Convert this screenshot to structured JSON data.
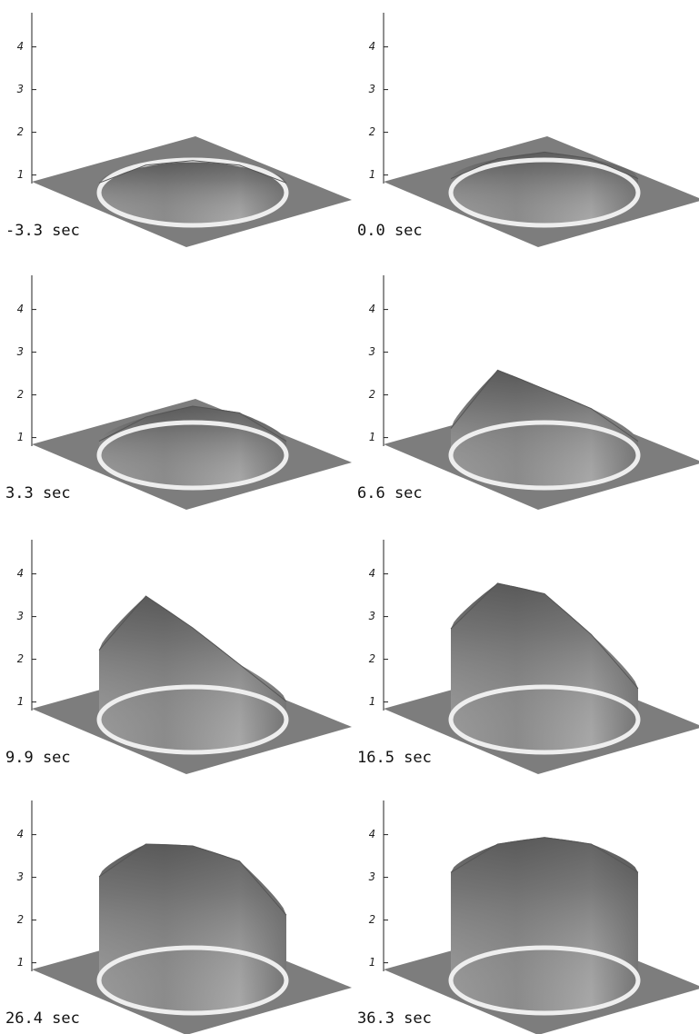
{
  "chart_data": [
    {
      "type": "surface",
      "label": "-3.3 sec",
      "zlim": [
        0.8,
        4.8
      ],
      "zticks": [
        1,
        2,
        3,
        4
      ],
      "heights": [
        1.1,
        1.15,
        1.2,
        1.15,
        1.1
      ]
    },
    {
      "type": "surface",
      "label": "0.0 sec",
      "zlim": [
        0.8,
        4.8
      ],
      "zticks": [
        1,
        2,
        3,
        4
      ],
      "heights": [
        1.2,
        1.3,
        1.4,
        1.3,
        1.2
      ]
    },
    {
      "type": "surface",
      "label": "3.3 sec",
      "zlim": [
        0.8,
        4.8
      ],
      "zticks": [
        1,
        2,
        3,
        4
      ],
      "heights": [
        1.2,
        1.4,
        1.6,
        1.5,
        1.2
      ]
    },
    {
      "type": "surface",
      "label": "6.6 sec",
      "zlim": [
        0.8,
        4.8
      ],
      "zticks": [
        1,
        2,
        3,
        4
      ],
      "heights": [
        1.5,
        2.5,
        2.0,
        1.6,
        1.2
      ]
    },
    {
      "type": "surface",
      "label": "9.9 sec",
      "zlim": [
        0.8,
        4.8
      ],
      "zticks": [
        1,
        2,
        3,
        4
      ],
      "heights": [
        2.5,
        3.4,
        2.6,
        1.8,
        1.3
      ]
    },
    {
      "type": "surface",
      "label": "16.5 sec",
      "zlim": [
        0.8,
        4.8
      ],
      "zticks": [
        1,
        2,
        3,
        4
      ],
      "heights": [
        3.0,
        3.7,
        3.4,
        2.5,
        1.6
      ]
    },
    {
      "type": "surface",
      "label": "26.4 sec",
      "zlim": [
        0.8,
        4.8
      ],
      "zticks": [
        1,
        2,
        3,
        4
      ],
      "heights": [
        3.3,
        3.7,
        3.6,
        3.3,
        2.4
      ]
    },
    {
      "type": "surface",
      "label": "36.3 sec",
      "zlim": [
        0.8,
        4.8
      ],
      "zticks": [
        1,
        2,
        3,
        4
      ],
      "heights": [
        3.4,
        3.7,
        3.8,
        3.7,
        3.4
      ]
    }
  ]
}
